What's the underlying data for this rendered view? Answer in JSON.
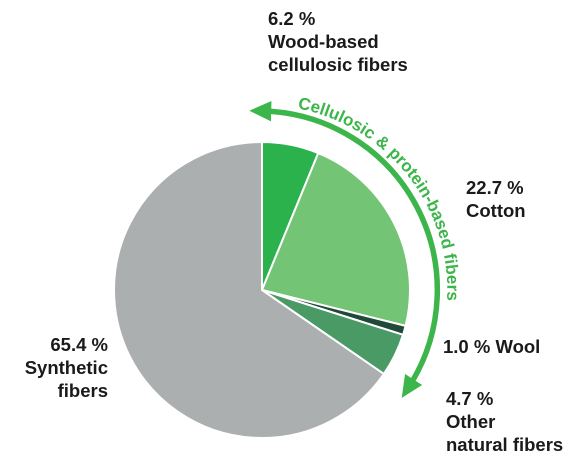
{
  "chart_data": {
    "type": "pie",
    "slices": [
      {
        "key": "wood",
        "label": "Wood-based cellulosic fibers",
        "value": 6.2,
        "value_text": "6.2 %",
        "lines": [
          "Wood-based",
          "cellulosic fibers"
        ],
        "color": "#2bb24c"
      },
      {
        "key": "cotton",
        "label": "Cotton",
        "value": 22.7,
        "value_text": "22.7 %",
        "lines": [
          "Cotton"
        ],
        "color": "#74c476"
      },
      {
        "key": "wool",
        "label": "Wool",
        "value": 1.0,
        "value_text": "1.0 %",
        "lines": [
          "Wool"
        ],
        "color": "#1f4a3a"
      },
      {
        "key": "other",
        "label": "Other natural fibers",
        "value": 4.7,
        "value_text": "4.7 %",
        "lines": [
          "Other",
          "natural fibers"
        ],
        "color": "#4a9a66"
      },
      {
        "key": "synth",
        "label": "Synthetic fibers",
        "value": 65.4,
        "value_text": "65.4 %",
        "lines": [
          "Synthetic",
          "fibers"
        ],
        "color": "#acafaf"
      }
    ],
    "start_angle_deg": 0,
    "direction": "clockwise",
    "annotation": {
      "text": "Cellulosic & protein-based fibers",
      "color": "#3cb54a"
    },
    "label_color": "#1a1a1a",
    "background": "#ffffff"
  }
}
